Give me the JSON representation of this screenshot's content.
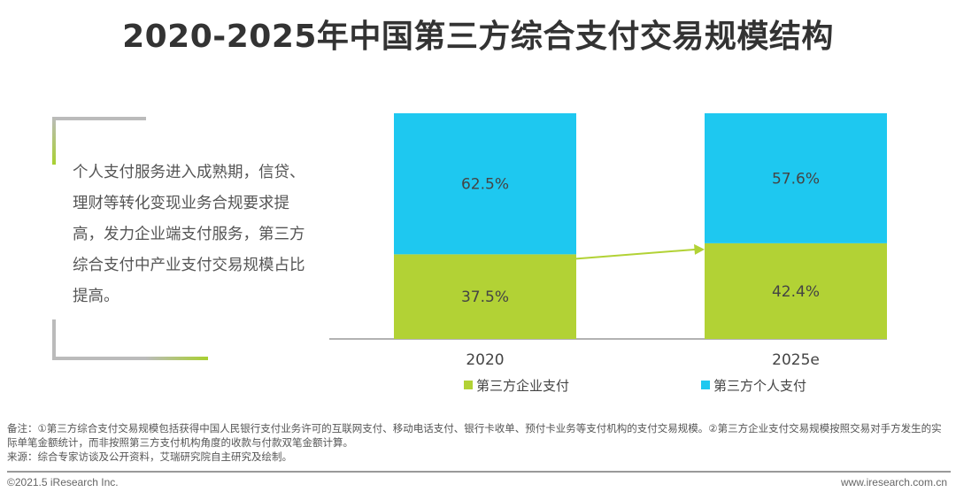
{
  "title": "2020-2025年中国第三方综合支付交易规模结构",
  "summary": "个人支付服务进入成熟期，信贷、理财等转化变现业务合规要求提高，发力企业端支付服务，第三方综合支付中产业支付交易规模占比提高。",
  "notes": {
    "note": "备注：①第三方综合支付交易规模包括获得中国人民银行支付业务许可的互联网支付、移动电话支付、银行卡收单、预付卡业务等支付机构的支付交易规模。②第三方企业支付交易规模按照交易对手方发生的实际单笔金额统计，而非按照第三方支付机构角度的收款与付款双笔金额计算。",
    "source": "来源：综合专家访谈及公开资料，艾瑞研究院自主研究及绘制。"
  },
  "footer": {
    "copyright": "©2021.5 iResearch Inc.",
    "site": "www.iresearch.com.cn"
  },
  "colors": {
    "enterprise": "#b2d235",
    "personal": "#1ec8f0"
  },
  "chart_data": {
    "type": "bar",
    "stacked": true,
    "percent": true,
    "categories": [
      "2020",
      "2025e"
    ],
    "series": [
      {
        "name": "第三方企业支付",
        "values": [
          37.5,
          42.4
        ],
        "labels": [
          "37.5%",
          "42.4%"
        ]
      },
      {
        "name": "第三方个人支付",
        "values": [
          62.5,
          57.6
        ],
        "labels": [
          "62.5%",
          "57.6%"
        ]
      }
    ],
    "ylim": [
      0,
      100
    ],
    "grid": false,
    "legend": "bottom"
  }
}
